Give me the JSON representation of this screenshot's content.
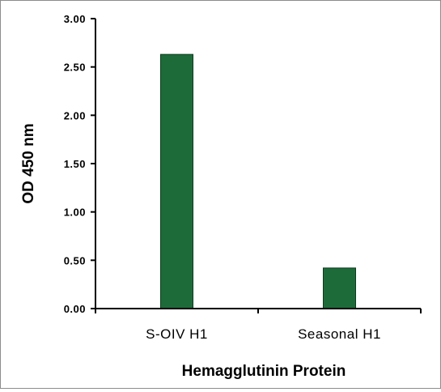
{
  "chart_data": {
    "type": "bar",
    "title": "",
    "xlabel": "Hemagglutinin Protein",
    "ylabel": "OD 450 nm",
    "categories": [
      "S-OIV H1",
      "Seasonal H1"
    ],
    "values": [
      2.63,
      0.42
    ],
    "ylim": [
      0,
      3.0
    ],
    "yticks": [
      "0.00",
      "0.50",
      "1.00",
      "1.50",
      "2.00",
      "2.50",
      "3.00"
    ],
    "ytick_values": [
      0,
      0.5,
      1.0,
      1.5,
      2.0,
      2.5,
      3.0
    ],
    "grid": false,
    "legend": "none",
    "colors": {
      "bar_fill": "#1e6b3a",
      "bar_stroke": "#0d3b1e",
      "axis": "#000000"
    }
  }
}
